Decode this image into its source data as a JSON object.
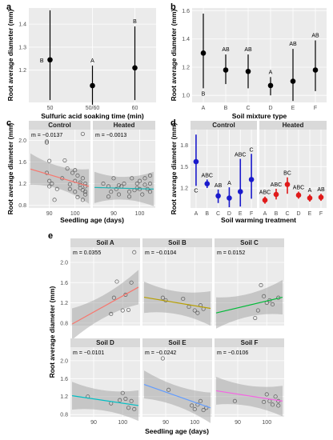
{
  "chart_data": [
    {
      "id": "a",
      "type": "errorbar",
      "panel_label": "a",
      "xlabel": "Sulfuric acid soaking time (min)",
      "ylabel": "Root average diameter (mm)",
      "categories": [
        "50",
        "50/60",
        "60"
      ],
      "values": [
        1.245,
        1.133,
        1.21
      ],
      "lower": [
        1.07,
        1.05,
        1.07
      ],
      "upper": [
        1.46,
        1.22,
        1.39
      ],
      "letters": [
        "B",
        "A",
        "B"
      ],
      "yticks": [
        "1.2",
        "1.3",
        "1.4"
      ],
      "ylim": [
        1.06,
        1.47
      ],
      "grid": true
    },
    {
      "id": "b",
      "type": "errorbar",
      "panel_label": "b",
      "xlabel": "Soil mixture type",
      "ylabel": "Root average diameter (mm)",
      "categories": [
        "A",
        "B",
        "C",
        "D",
        "E",
        "F"
      ],
      "values": [
        1.3,
        1.18,
        1.17,
        1.07,
        1.1,
        1.18
      ],
      "lower": [
        1.05,
        1.08,
        1.05,
        1.0,
        0.96,
        1.03
      ],
      "upper": [
        1.58,
        1.29,
        1.29,
        1.13,
        1.33,
        1.39
      ],
      "letters": [
        "B",
        "AB",
        "AB",
        "A",
        "AB",
        "AB"
      ],
      "yticks": [
        "1.0",
        "1.2",
        "1.4",
        "1.6"
      ],
      "ylim": [
        0.95,
        1.62
      ],
      "grid": true
    },
    {
      "id": "c",
      "type": "scatter",
      "panel_label": "c",
      "xlabel": "Seedling age (days)",
      "ylabel": "Root average diameter (mm)",
      "xticks": [
        "90",
        "100"
      ],
      "yticks": [
        "0.8",
        "1.2",
        "1.6",
        "2.0"
      ],
      "xlim": [
        82,
        106
      ],
      "ylim": [
        0.75,
        2.2
      ],
      "facets": [
        {
          "title": "Control",
          "annotation": "m = −0.0137",
          "color": "#f8766d",
          "fit": [
            1.47,
            1.15
          ],
          "points": [
            [
              89,
              1.96
            ],
            [
              90,
              1.62
            ],
            [
              89,
              1.4
            ],
            [
              90,
              1.25
            ],
            [
              91,
              1.2
            ],
            [
              93,
              1.1
            ],
            [
              95,
              1.3
            ],
            [
              96,
              1.63
            ],
            [
              97,
              1.48
            ],
            [
              98,
              1.19
            ],
            [
              99,
              1.4
            ],
            [
              100,
              1.25
            ],
            [
              100,
              1.05
            ],
            [
              101,
              1.35
            ],
            [
              101,
              0.95
            ],
            [
              102,
              1.18
            ],
            [
              102,
              1.12
            ],
            [
              103,
              1.08
            ],
            [
              103,
              1.3
            ],
            [
              103,
              2.12
            ],
            [
              104,
              1.0
            ],
            [
              104,
              1.15
            ],
            [
              104,
              1.05
            ],
            [
              89,
              1.98
            ],
            [
              90,
              1.15
            ],
            [
              98,
              1.1
            ],
            [
              100,
              1.45
            ],
            [
              102,
              1.22
            ],
            [
              103,
              0.9
            ],
            [
              104,
              1.2
            ],
            [
              92,
              0.9
            ]
          ]
        },
        {
          "title": "Heated",
          "annotation": "m = −0.0013",
          "color": "#19b4b4",
          "fit": [
            1.13,
            1.1
          ],
          "points": [
            [
              86,
              1.2
            ],
            [
              88,
              1.15
            ],
            [
              89,
              1.05
            ],
            [
              90,
              1.3
            ],
            [
              91,
              1.1
            ],
            [
              92,
              1.0
            ],
            [
              93,
              1.15
            ],
            [
              94,
              1.2
            ],
            [
              96,
              1.05
            ],
            [
              97,
              1.3
            ],
            [
              98,
              1.08
            ],
            [
              99,
              1.12
            ],
            [
              100,
              1.25
            ],
            [
              101,
              1.0
            ],
            [
              102,
              1.18
            ],
            [
              103,
              1.1
            ],
            [
              104,
              1.05
            ],
            [
              104,
              1.35
            ],
            [
              92,
              1.17
            ],
            [
              96,
              0.96
            ],
            [
              100,
              1.1
            ],
            [
              102,
              1.3
            ],
            [
              88,
              0.96
            ],
            [
              99,
              1.2
            ],
            [
              104,
              1.2
            ]
          ]
        }
      ]
    },
    {
      "id": "d",
      "type": "errorbar",
      "panel_label": "d",
      "xlabel": "Soil warming treatment",
      "ylabel": "Root average diameter (mm)",
      "yticks": [
        "1.2",
        "1.5",
        "1.8"
      ],
      "ylim": [
        0.92,
        2.02
      ],
      "facets": [
        {
          "title": "Control",
          "color": "#1a1acc",
          "categories": [
            "A",
            "B",
            "C",
            "D",
            "E",
            "F"
          ],
          "values": [
            1.57,
            1.26,
            1.09,
            1.06,
            1.15,
            1.32
          ],
          "lower": [
            1.23,
            1.2,
            0.99,
            0.93,
            0.94,
            1.05
          ],
          "upper": [
            1.95,
            1.32,
            1.18,
            1.21,
            1.61,
            1.68
          ],
          "letters": [
            "C",
            "ABC",
            "AB",
            "A",
            "ABC",
            "C"
          ],
          "letter_pos": [
            "below",
            "above",
            "above",
            "above",
            "above",
            "above"
          ]
        },
        {
          "title": "Heated",
          "color": "#e01a1a",
          "categories": [
            "A",
            "B",
            "C",
            "D",
            "E",
            "F"
          ],
          "values": [
            1.03,
            1.11,
            1.25,
            1.1,
            1.06,
            1.07
          ],
          "lower": [
            0.98,
            1.04,
            1.12,
            1.05,
            1.01,
            1.02
          ],
          "upper": [
            1.08,
            1.19,
            1.35,
            1.15,
            1.11,
            1.12
          ],
          "letters": [
            "ABC",
            "ABC",
            "BC",
            "ABC",
            "A",
            "AB"
          ],
          "letter_pos": [
            "above",
            "above",
            "above",
            "above",
            "above",
            "above"
          ]
        }
      ]
    },
    {
      "id": "e",
      "type": "scatter",
      "panel_label": "e",
      "xlabel": "Seedling age (days)",
      "ylabel": "Root average diameter (mm)",
      "xticks": [
        "90",
        "100"
      ],
      "yticks": [
        "0.8",
        "1.2",
        "1.6",
        "2.0"
      ],
      "xlim": [
        82,
        106
      ],
      "ylim": [
        0.75,
        2.3
      ],
      "facets": [
        {
          "title": "Soil A",
          "annotation": "m = 0.0355",
          "color": "#f8766d",
          "fit": [
            0.78,
            1.51
          ],
          "points": [
            [
              96,
              0.98
            ],
            [
              98,
              1.62
            ],
            [
              100,
              1.05
            ],
            [
              101,
              1.36
            ],
            [
              102,
              1.06
            ],
            [
              104,
              2.2
            ],
            [
              103,
              1.6
            ],
            [
              97,
              1.3
            ]
          ]
        },
        {
          "title": "Soil B",
          "annotation": "m = −0.0104",
          "color": "#b79f00",
          "fit": [
            1.31,
            1.09
          ],
          "points": [
            [
              89,
              1.3
            ],
            [
              90,
              1.25
            ],
            [
              96,
              1.28
            ],
            [
              98,
              1.12
            ],
            [
              100,
              1.05
            ],
            [
              102,
              1.15
            ],
            [
              103,
              1.08
            ],
            [
              101,
              1.0
            ]
          ]
        },
        {
          "title": "Soil C",
          "annotation": "m = 0.0152",
          "color": "#00ba38",
          "fit": [
            1.0,
            1.31
          ],
          "points": [
            [
              96,
              0.9
            ],
            [
              97,
              1.05
            ],
            [
              98,
              1.55
            ],
            [
              101,
              1.25
            ],
            [
              102,
              1.17
            ],
            [
              104,
              1.3
            ],
            [
              100,
              1.2
            ],
            [
              99,
              1.33
            ]
          ]
        },
        {
          "title": "Soil D",
          "annotation": "m = −0.0101",
          "color": "#00bfc4",
          "fit": [
            1.22,
            1.0
          ],
          "points": [
            [
              88,
              1.2
            ],
            [
              96,
              1.05
            ],
            [
              99,
              1.12
            ],
            [
              100,
              1.28
            ],
            [
              101,
              1.15
            ],
            [
              102,
              0.95
            ],
            [
              103,
              1.1
            ],
            [
              104,
              0.92
            ]
          ]
        },
        {
          "title": "Soil E",
          "annotation": "m = −0.0242",
          "color": "#619cff",
          "fit": [
            1.47,
            0.95
          ],
          "points": [
            [
              89,
              2.05
            ],
            [
              91,
              1.35
            ],
            [
              99,
              1.0
            ],
            [
              100,
              0.92
            ],
            [
              101,
              1.02
            ],
            [
              102,
              1.1
            ],
            [
              103,
              0.9
            ],
            [
              104,
              0.95
            ]
          ]
        },
        {
          "title": "Soil F",
          "annotation": "m = −0.0106",
          "color": "#f564e3",
          "fit": [
            1.33,
            1.1
          ],
          "points": [
            [
              89,
              1.1
            ],
            [
              99,
              1.08
            ],
            [
              100,
              1.25
            ],
            [
              101,
              1.1
            ],
            [
              102,
              1.02
            ],
            [
              103,
              1.2
            ],
            [
              104,
              1.1
            ],
            [
              104,
              1.0
            ]
          ]
        }
      ]
    }
  ]
}
